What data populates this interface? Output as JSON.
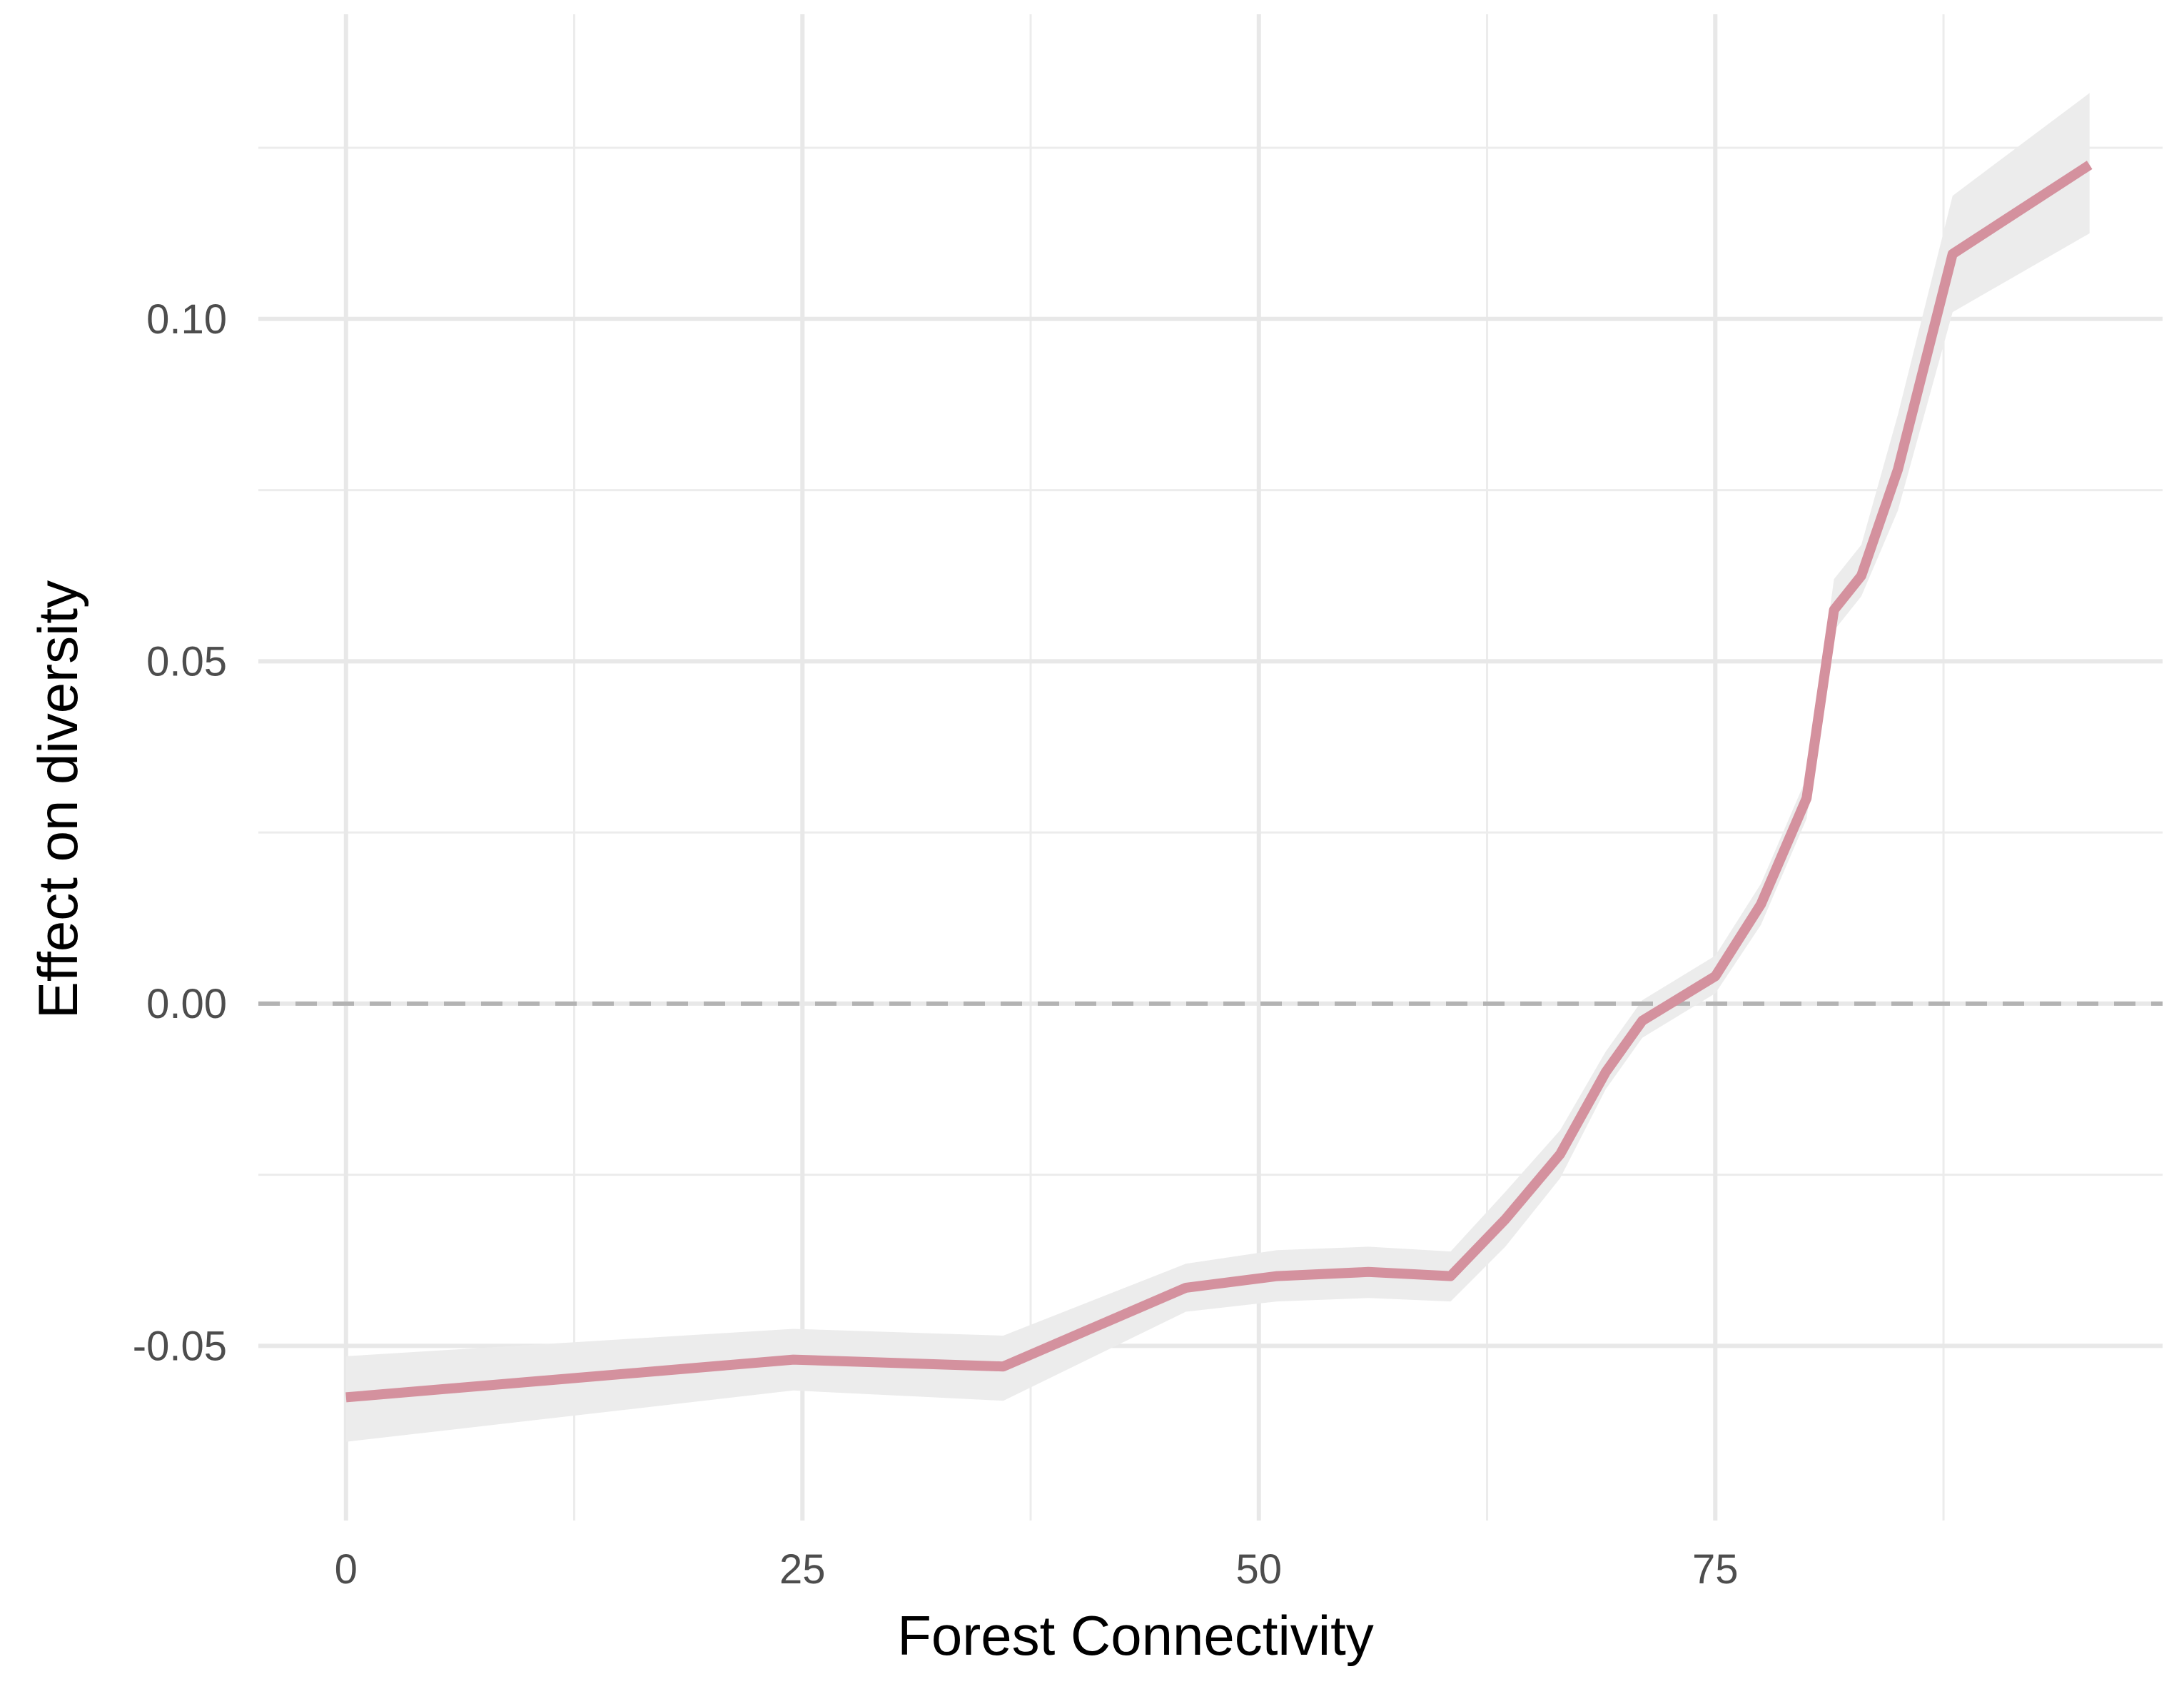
{
  "chart_data": {
    "type": "line",
    "title": "",
    "xlabel": "Forest Connectivity",
    "ylabel": "Effect on diversity",
    "xlim": [
      -4.8,
      99.5
    ],
    "ylim": [
      -0.0755,
      0.1445
    ],
    "x_ticks": [
      0,
      25,
      50,
      75
    ],
    "x_tick_labels": [
      "0",
      "25",
      "50",
      "75"
    ],
    "x_minor_ticks": [
      12.5,
      37.5,
      62.5,
      87.5
    ],
    "y_ticks": [
      -0.05,
      0.0,
      0.05,
      0.1
    ],
    "y_tick_labels": [
      "-0.05",
      "0.00",
      "0.05",
      "0.10"
    ],
    "y_minor_ticks": [
      -0.025,
      0.025,
      0.075,
      0.125
    ],
    "grid": true,
    "reference_line": {
      "y": 0,
      "style": "dashed",
      "color": "#b3b3b3"
    },
    "line_color": "#d4919e",
    "band_color": "#ececec",
    "series": [
      {
        "x": [
          0,
          24.5,
          36,
          46,
          51,
          56,
          60.5,
          63.5,
          66.5,
          69,
          71,
          75,
          77.5,
          80,
          81.5,
          83,
          85,
          88,
          95.5
        ],
        "y": [
          -0.0575,
          -0.052,
          -0.053,
          -0.0415,
          -0.0398,
          -0.0392,
          -0.0398,
          -0.0315,
          -0.022,
          -0.01,
          -0.0025,
          0.004,
          0.0145,
          0.03,
          0.0575,
          0.0625,
          0.078,
          0.1095,
          0.1225
        ],
        "lower": [
          -0.064,
          -0.0565,
          -0.058,
          -0.045,
          -0.0435,
          -0.043,
          -0.0435,
          -0.0355,
          -0.0255,
          -0.0125,
          -0.005,
          0.0015,
          0.0115,
          0.027,
          0.0545,
          0.0595,
          0.072,
          0.101,
          0.1125
        ],
        "upper": [
          -0.0515,
          -0.0475,
          -0.0485,
          -0.038,
          -0.036,
          -0.0355,
          -0.0362,
          -0.0275,
          -0.0185,
          -0.007,
          0.0005,
          0.007,
          0.0175,
          0.033,
          0.062,
          0.067,
          0.086,
          0.118,
          0.133
        ]
      }
    ]
  }
}
